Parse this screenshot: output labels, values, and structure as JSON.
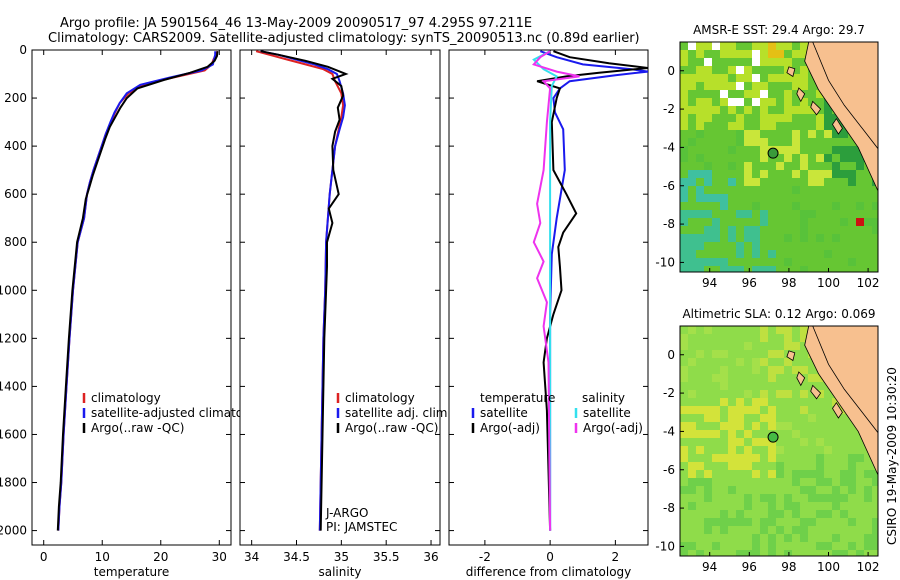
{
  "header": {
    "title_line1": "Argo profile: JA 5901564_46 13-May-2009 20090517_97 4.295S 97.211E",
    "title_line2": "Climatology: CARS2009. Satellite-adjusted climatology: synTS_20090513.nc (0.89d earlier)"
  },
  "side_label": "CSIRO 19-May-2009 10:30:20",
  "colors": {
    "climatology": "#dd2222",
    "satellite": "#1a1aee",
    "argo": "#000000",
    "sal_satellite": "#33e0ee",
    "sal_argo": "#ee33ee",
    "land": "#f7c08f",
    "sst_sea": "#66c633",
    "sla_sea": "#8fdc4a"
  },
  "chart_data": [
    {
      "type": "line",
      "id": "temperature",
      "xlabel": "temperature",
      "ylabel": "",
      "xlim": [
        -2,
        32
      ],
      "ylim": [
        2060,
        0
      ],
      "x_ticks": [
        0,
        10,
        20,
        30
      ],
      "x_tick_labels": [
        "0",
        "10",
        "20",
        "30"
      ],
      "y_ticks": [
        0,
        200,
        400,
        600,
        800,
        1000,
        1200,
        1400,
        1600,
        1800,
        2000
      ],
      "y_tick_labels": [
        "0",
        "200",
        "400",
        "600",
        "800",
        "1000",
        "1200",
        "1400",
        "1600",
        "1800",
        "2000"
      ],
      "legend": [
        "climatology",
        "satellite-adjusted climatology",
        "Argo(..raw -QC)"
      ],
      "series": [
        {
          "name": "climatology",
          "color": "#dd2222",
          "x": [
            29.7,
            29.4,
            29.0,
            28.7,
            27.5,
            23.0,
            17.5,
            14.5,
            13.0,
            12.2,
            11.5,
            10.6,
            9.9,
            9.2,
            8.5,
            7.9,
            7.4,
            6.9,
            5.8,
            5.0,
            4.4,
            3.9,
            3.4,
            3.0,
            2.7,
            2.5
          ],
          "y": [
            5,
            20,
            40,
            60,
            85,
            110,
            140,
            180,
            220,
            260,
            300,
            350,
            400,
            450,
            500,
            550,
            600,
            700,
            800,
            1000,
            1200,
            1400,
            1600,
            1800,
            1900,
            2000
          ]
        },
        {
          "name": "satellite-adjusted climatology",
          "color": "#1a1aee",
          "x": [
            29.3,
            29.3,
            29.1,
            28.9,
            27.0,
            21.5,
            16.5,
            14.2,
            13.0,
            12.1,
            11.4,
            10.6,
            9.9,
            9.2,
            8.5,
            7.9,
            7.4,
            6.9,
            5.8,
            5.0,
            4.4,
            3.9,
            3.4,
            3.0,
            2.7,
            2.5
          ],
          "y": [
            5,
            20,
            40,
            60,
            85,
            115,
            145,
            180,
            220,
            260,
            300,
            350,
            400,
            450,
            500,
            550,
            600,
            700,
            800,
            1000,
            1200,
            1400,
            1600,
            1800,
            1900,
            2000
          ]
        },
        {
          "name": "Argo(..raw -QC)",
          "color": "#000000",
          "x": [
            29.7,
            29.6,
            29.2,
            28.0,
            25.0,
            20.5,
            16.0,
            14.2,
            13.1,
            12.2,
            11.3,
            10.5,
            9.8,
            9.1,
            8.4,
            7.8,
            7.2,
            6.7,
            5.7,
            4.9,
            4.3,
            3.8,
            3.3,
            2.9,
            2.6,
            2.4
          ],
          "y": [
            5,
            25,
            45,
            70,
            95,
            125,
            160,
            200,
            240,
            280,
            320,
            370,
            420,
            470,
            520,
            570,
            620,
            700,
            800,
            1000,
            1200,
            1400,
            1600,
            1800,
            1900,
            2000
          ]
        }
      ]
    },
    {
      "type": "line",
      "id": "salinity",
      "xlabel": "salinity",
      "xlim": [
        33.87,
        36.1
      ],
      "ylim": [
        2060,
        0
      ],
      "x_ticks": [
        34,
        34.5,
        35,
        35.5,
        36
      ],
      "x_tick_labels": [
        "34",
        "34.5",
        "35",
        "35.5",
        "36"
      ],
      "legend": [
        "climatology",
        "satellite adj. clim.",
        "Argo(..raw -QC)"
      ],
      "annotations": [
        "J-ARGO",
        "PI: JAMSTEC"
      ],
      "series": [
        {
          "name": "climatology",
          "color": "#dd2222",
          "x": [
            34.05,
            34.2,
            34.4,
            34.6,
            34.8,
            34.9,
            34.93,
            35.0,
            35.02,
            35.0,
            34.97,
            34.93,
            34.9,
            34.87,
            34.85,
            34.83,
            34.82,
            34.8,
            34.79,
            34.78,
            34.77,
            34.76
          ],
          "y": [
            5,
            20,
            40,
            60,
            80,
            100,
            130,
            180,
            230,
            280,
            330,
            400,
            500,
            600,
            700,
            800,
            1000,
            1200,
            1400,
            1600,
            1800,
            2000
          ]
        },
        {
          "name": "satellite adj. clim.",
          "color": "#1a1aee",
          "x": [
            34.1,
            34.3,
            34.5,
            34.7,
            34.85,
            34.95,
            34.98,
            35.02,
            35.04,
            35.02,
            34.98,
            34.93,
            34.9,
            34.87,
            34.85,
            34.83,
            34.82,
            34.8,
            34.79,
            34.78,
            34.77,
            34.76
          ],
          "y": [
            5,
            20,
            40,
            60,
            80,
            100,
            130,
            180,
            230,
            280,
            330,
            400,
            500,
            600,
            700,
            800,
            1000,
            1200,
            1400,
            1600,
            1800,
            2000
          ]
        },
        {
          "name": "Argo(..raw -QC)",
          "color": "#000000",
          "x": [
            34.1,
            34.3,
            34.6,
            34.85,
            35.05,
            34.9,
            35.0,
            35.02,
            34.96,
            34.98,
            34.93,
            34.9,
            34.91,
            34.97,
            34.86,
            34.9,
            34.84,
            34.84,
            34.83,
            34.82,
            34.81,
            34.8,
            34.79,
            34.78,
            34.77
          ],
          "y": [
            5,
            20,
            45,
            70,
            100,
            120,
            150,
            190,
            240,
            290,
            340,
            400,
            500,
            600,
            660,
            720,
            800,
            900,
            1000,
            1100,
            1200,
            1400,
            1600,
            1800,
            2000
          ]
        }
      ]
    },
    {
      "type": "line",
      "id": "difference",
      "xlabel": "difference from climatology",
      "xlim": [
        -3.1,
        3.0
      ],
      "ylim": [
        2060,
        0
      ],
      "x_ticks": [
        -2,
        0,
        2
      ],
      "x_tick_labels": [
        "-2",
        "0",
        "2"
      ],
      "legend_columns": [
        {
          "header": "temperature",
          "items": [
            "satellite",
            "Argo(-adj)"
          ]
        },
        {
          "header": "salinity",
          "items": [
            "satellite",
            "Argo(-adj)"
          ]
        }
      ],
      "series": [
        {
          "name": "temperature satellite",
          "color": "#1a1aee",
          "x": [
            -0.3,
            0.2,
            1.0,
            2.5,
            3.0,
            2.0,
            0.6,
            0.3,
            0.1,
            0.15,
            0.4,
            0.45,
            0.2,
            0.05,
            0.0,
            0.0,
            0.0
          ],
          "y": [
            5,
            30,
            60,
            80,
            90,
            105,
            130,
            160,
            200,
            260,
            330,
            500,
            700,
            850,
            1100,
            1500,
            2000
          ]
        },
        {
          "name": "temperature Argo(-adj)",
          "color": "#000000",
          "x": [
            0.1,
            0.6,
            1.8,
            3.0,
            1.5,
            0.5,
            -0.4,
            0.3,
            0.2,
            0.05,
            0.1,
            0.5,
            0.8,
            0.4,
            0.25,
            0.3,
            0.35,
            0.1,
            -0.1,
            -0.2,
            -0.1,
            0.0
          ],
          "y": [
            5,
            30,
            55,
            75,
            95,
            110,
            130,
            160,
            200,
            300,
            500,
            600,
            680,
            760,
            820,
            900,
            1000,
            1100,
            1200,
            1300,
            1500,
            2000
          ]
        },
        {
          "name": "salinity satellite",
          "color": "#33e0ee",
          "x": [
            0.0,
            -0.5,
            -0.2,
            0.2,
            0.05,
            0.0,
            0.0,
            0.0,
            0.0
          ],
          "y": [
            5,
            40,
            80,
            110,
            150,
            300,
            800,
            1500,
            2000
          ]
        },
        {
          "name": "salinity Argo(-adj)",
          "color": "#ee33ee",
          "x": [
            0.0,
            -0.3,
            -0.5,
            0.2,
            0.9,
            -0.2,
            0.0,
            -0.1,
            -0.2,
            -0.4,
            -0.3,
            -0.5,
            -0.2,
            -0.4,
            -0.1,
            -0.2,
            -0.05,
            0.0
          ],
          "y": [
            5,
            30,
            60,
            90,
            110,
            130,
            160,
            300,
            500,
            640,
            720,
            800,
            880,
            950,
            1050,
            1150,
            1300,
            2000
          ]
        }
      ]
    },
    {
      "type": "heatmap",
      "id": "sst_map",
      "title": "AMSR-E SST: 29.4 Argo: 29.7",
      "x_ticks": [
        94,
        96,
        98,
        100,
        102
      ],
      "x_tick_labels": [
        "94",
        "96",
        "98",
        "100",
        "102"
      ],
      "y_ticks": [
        0,
        -2,
        -4,
        -6,
        -8,
        -10
      ],
      "y_tick_labels": [
        "0",
        "-2",
        "-4",
        "-6",
        "-8",
        "-10"
      ],
      "xlim": [
        92.5,
        102.5
      ],
      "ylim": [
        -10.5,
        1.5
      ],
      "marker": {
        "lon": 97.2,
        "lat": -4.3
      }
    },
    {
      "type": "heatmap",
      "id": "sla_map",
      "title": "Altimetric SLA: 0.12 Argo: 0.069",
      "x_ticks": [
        94,
        96,
        98,
        100,
        102
      ],
      "x_tick_labels": [
        "94",
        "96",
        "98",
        "100",
        "102"
      ],
      "y_ticks": [
        0,
        -2,
        -4,
        -6,
        -8,
        -10
      ],
      "y_tick_labels": [
        "0",
        "-2",
        "-4",
        "-6",
        "-8",
        "-10"
      ],
      "xlim": [
        92.5,
        102.5
      ],
      "ylim": [
        -10.5,
        1.5
      ],
      "marker": {
        "lon": 97.2,
        "lat": -4.3
      }
    }
  ]
}
